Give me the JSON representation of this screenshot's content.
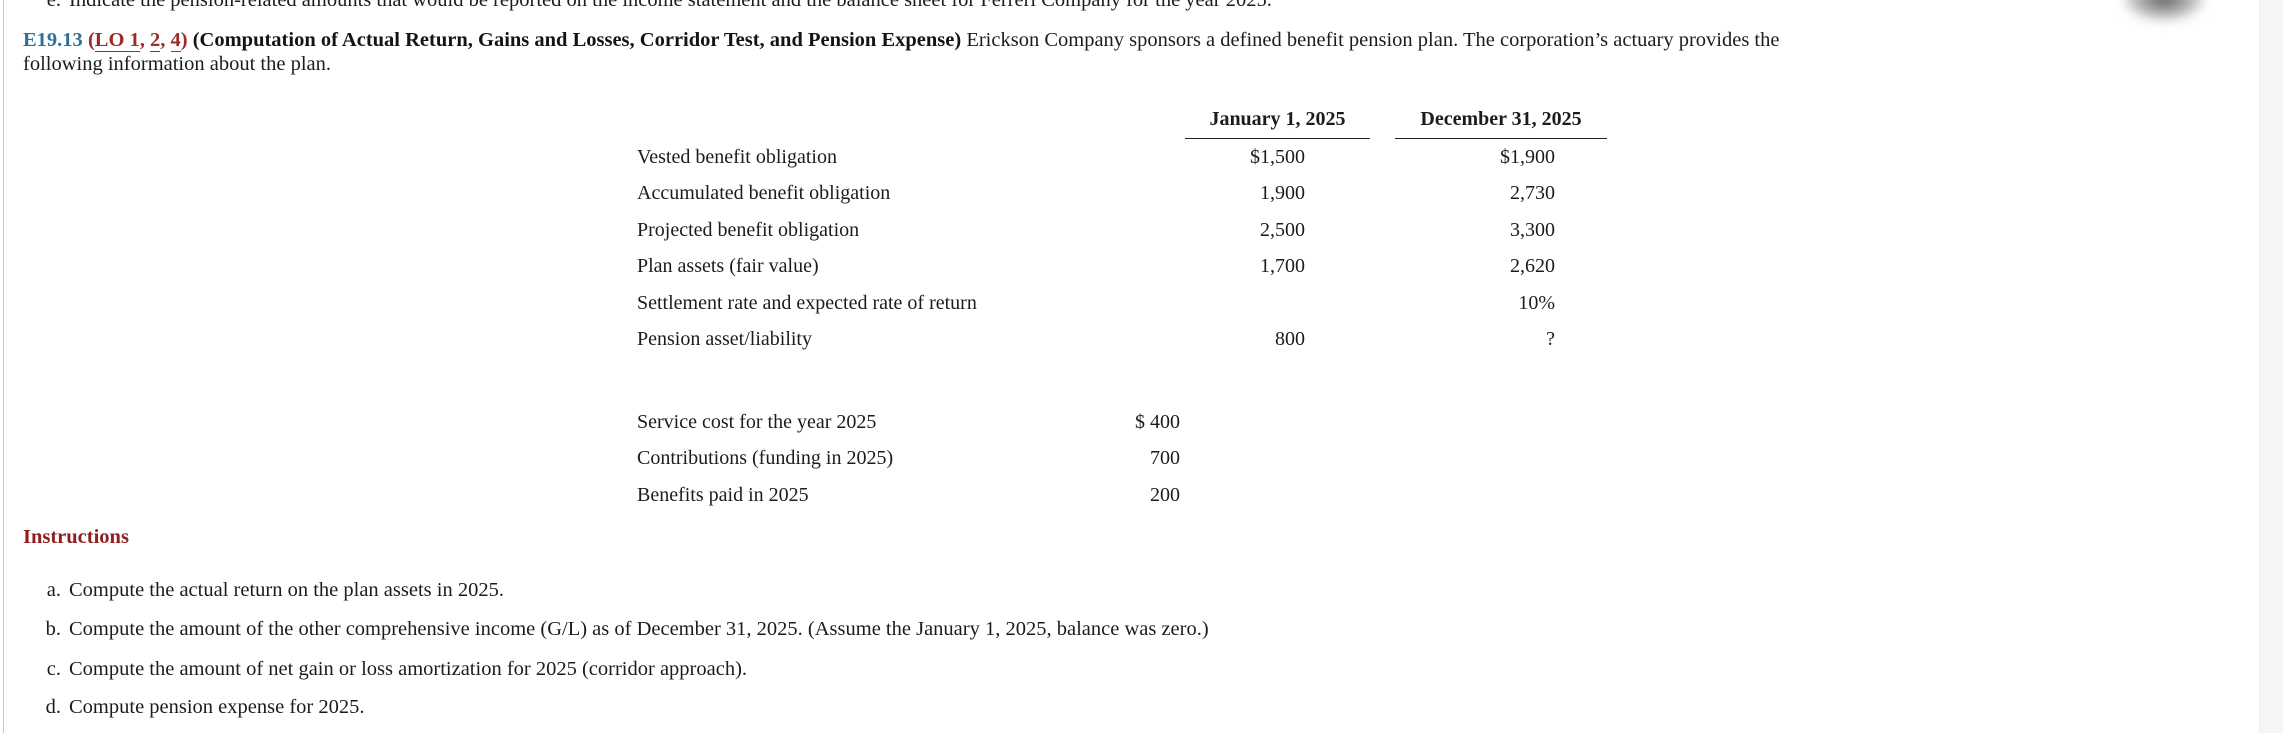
{
  "page": {
    "clipped_item": {
      "marker": "e.",
      "text": "Indicate the pension-related amounts that would be reported on the income statement and the balance sheet for Ferreri Company for the year 2025."
    }
  },
  "exercise": {
    "number": "E19.13",
    "lo": {
      "open": "(",
      "link1": "LO 1",
      "sep1": ", ",
      "link2": "2",
      "sep2": ", ",
      "link3": "4",
      "close": ")"
    },
    "title": "(Computation of Actual Return, Gains and Losses, Corridor Test, and Pension Expense)",
    "intro_line1": "Erickson Company sponsors a defined benefit pension plan. The corporation’s actuary provides the",
    "intro_line2": "following information about the plan."
  },
  "table1": {
    "col_headers": [
      "January 1, 2025",
      "December 31, 2025"
    ],
    "rows": [
      {
        "label": "Vested benefit obligation",
        "jan": "$1,500",
        "dec": "$1,900"
      },
      {
        "label": "Accumulated benefit obligation",
        "jan": "1,900",
        "dec": "2,730"
      },
      {
        "label": "Projected benefit obligation",
        "jan": "2,500",
        "dec": "3,300"
      },
      {
        "label": "Plan assets (fair value)",
        "jan": "1,700",
        "dec": "2,620"
      },
      {
        "label": "Settlement rate and expected rate of return",
        "jan": "",
        "dec": "10%"
      },
      {
        "label": "Pension asset/liability",
        "jan": "800",
        "dec": "?"
      }
    ]
  },
  "table2": {
    "rows": [
      {
        "label": "Service cost for the year 2025",
        "value": "$ 400"
      },
      {
        "label": "Contributions (funding in 2025)",
        "value": "700"
      },
      {
        "label": "Benefits paid in 2025",
        "value": "200"
      }
    ]
  },
  "instructions": {
    "heading": "Instructions",
    "items": [
      {
        "marker": "a.",
        "text": "Compute the actual return on the plan assets in 2025."
      },
      {
        "marker": "b.",
        "text": "Compute the amount of the other comprehensive income (G/L) as of December 31, 2025. (Assume the January 1, 2025, balance was zero.)"
      },
      {
        "marker": "c.",
        "text": "Compute the amount of net gain or loss amortization for 2025 (corridor approach)."
      },
      {
        "marker": "d.",
        "text": "Compute pension expense for 2025."
      }
    ]
  },
  "colors": {
    "exercise_number": "#2e7093",
    "link_red": "#9e2b25",
    "link_underline": "#2b48c8",
    "instructions_heading": "#8f1f1f",
    "body_text": "#1c1c1c"
  }
}
